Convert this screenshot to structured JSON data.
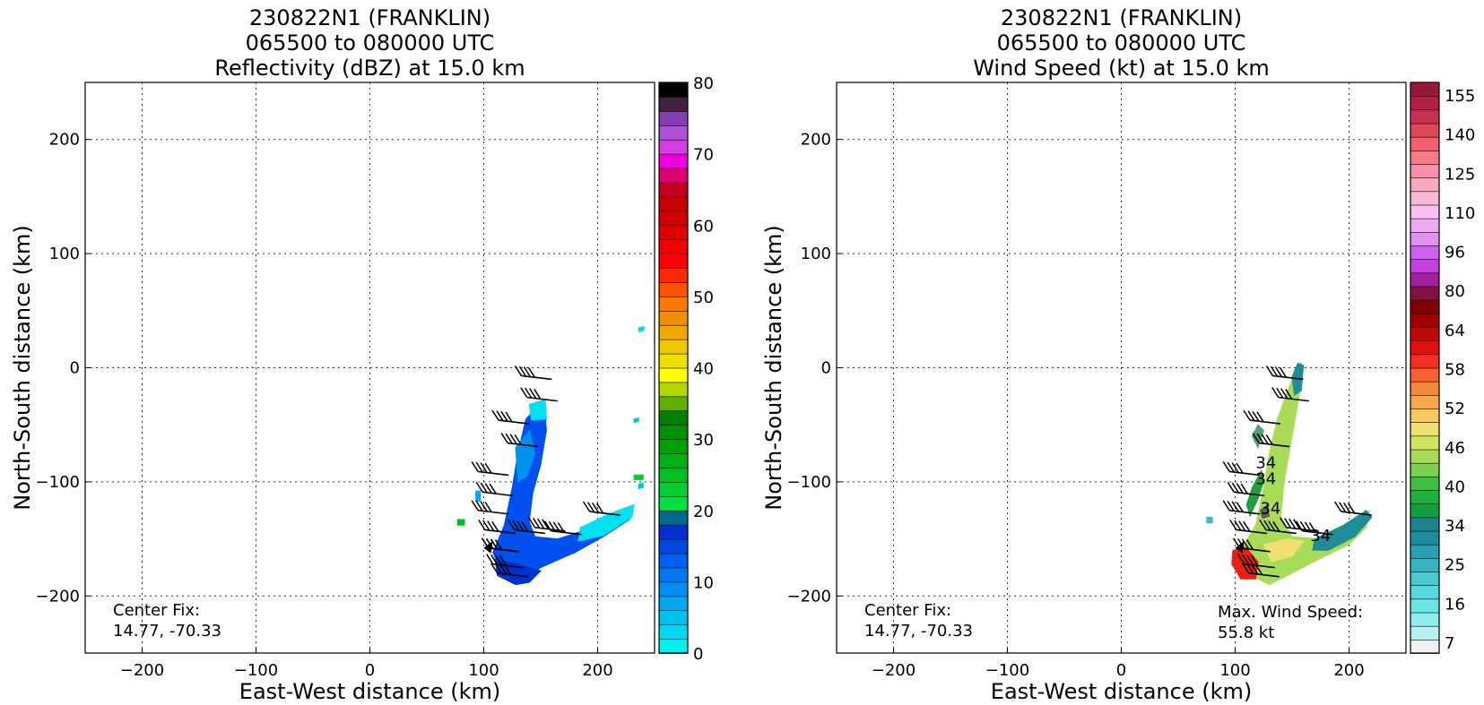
{
  "chart_data": [
    {
      "type": "heatmap",
      "title_lines": [
        "230822N1 (FRANKLIN)",
        "065500 to 080000 UTC",
        "Reflectivity (dBZ) at 15.0 km"
      ],
      "xlabel": "East-West distance (km)",
      "ylabel": "North-South distance (km)",
      "xlim": [
        -250,
        250
      ],
      "ylim": [
        -250,
        250
      ],
      "xticks": [
        -200,
        -100,
        0,
        100,
        200
      ],
      "yticks": [
        -200,
        -100,
        0,
        100,
        200
      ],
      "xtick_labels": [
        "−200",
        "−100",
        "0",
        "100",
        "200"
      ],
      "ytick_labels": [
        "−200",
        "−100",
        "0",
        "100",
        "200"
      ],
      "grid": true,
      "annotation_lines": [
        "Center Fix:",
        "14.77, -70.33"
      ],
      "colorbar": {
        "min": 0,
        "max": 80,
        "ticks": [
          0,
          10,
          20,
          30,
          40,
          50,
          60,
          70,
          80
        ],
        "colors": [
          "#00f0f0",
          "#00d8f0",
          "#00c0f0",
          "#00a8f0",
          "#0090f0",
          "#0078f0",
          "#0060f0",
          "#0048e0",
          "#0030d0",
          "#006a8a",
          "#00e040",
          "#00d030",
          "#00c020",
          "#00b010",
          "#00a000",
          "#009000",
          "#008000",
          "#60b000",
          "#b0d800",
          "#ffff00",
          "#f0e000",
          "#f0c800",
          "#f0a800",
          "#f09000",
          "#ff7800",
          "#ff5000",
          "#ff2800",
          "#ff0000",
          "#f00000",
          "#e00000",
          "#d00000",
          "#c80000",
          "#c80020",
          "#e00070",
          "#f000e0",
          "#d040e0",
          "#b050d8",
          "#8040b0",
          "#402040",
          "#000000"
        ]
      },
      "echo_regions": [
        {
          "fill": "#0050f0",
          "points": [
            [
              118,
              -138
            ],
            [
              125,
              -105
            ],
            [
              130,
              -75
            ],
            [
              137,
              -45
            ],
            [
              153,
              -28
            ],
            [
              155,
              -55
            ],
            [
              150,
              -85
            ],
            [
              143,
              -110
            ],
            [
              140,
              -135
            ],
            [
              145,
              -148
            ],
            [
              165,
              -150
            ],
            [
              190,
              -142
            ],
            [
              215,
              -128
            ],
            [
              232,
              -120
            ],
            [
              228,
              -133
            ],
            [
              205,
              -148
            ],
            [
              180,
              -162
            ],
            [
              150,
              -175
            ],
            [
              132,
              -188
            ],
            [
              115,
              -178
            ],
            [
              108,
              -162
            ]
          ]
        },
        {
          "fill": "#00e0f0",
          "points": [
            [
              140,
              -32
            ],
            [
              154,
              -28
            ],
            [
              155,
              -45
            ],
            [
              142,
              -46
            ]
          ]
        },
        {
          "fill": "#00e0f0",
          "points": [
            [
              185,
              -140
            ],
            [
              210,
              -128
            ],
            [
              232,
              -120
            ],
            [
              230,
              -131
            ],
            [
              205,
              -147
            ],
            [
              183,
              -152
            ]
          ]
        },
        {
          "fill": "#0090f0",
          "points": [
            [
              128,
              -70
            ],
            [
              140,
              -55
            ],
            [
              145,
              -75
            ],
            [
              138,
              -95
            ],
            [
              130,
              -100
            ]
          ]
        },
        {
          "fill": "#0030d0",
          "points": [
            [
              110,
              -168
            ],
            [
              130,
              -172
            ],
            [
              150,
              -178
            ],
            [
              140,
              -188
            ],
            [
              128,
              -190
            ],
            [
              112,
              -182
            ]
          ]
        },
        {
          "fill": "#00c0f0",
          "points": [
            [
              232,
              -45
            ],
            [
              236,
              -44
            ],
            [
              236,
              -47
            ],
            [
              232,
              -48
            ]
          ]
        },
        {
          "fill": "#00c0f0",
          "points": [
            [
              236,
              -102
            ],
            [
              240,
              -101
            ],
            [
              240,
              -105
            ],
            [
              236,
              -106
            ]
          ]
        },
        {
          "fill": "#00d8f0",
          "points": [
            [
              236,
              35
            ],
            [
              241,
              36
            ],
            [
              240,
              32
            ],
            [
              236,
              32
            ]
          ]
        },
        {
          "fill": "#00c020",
          "points": [
            [
              77,
              -133
            ],
            [
              83,
              -133
            ],
            [
              83,
              -138
            ],
            [
              77,
              -138
            ]
          ]
        },
        {
          "fill": "#00d030",
          "points": [
            [
              232,
              -94
            ],
            [
              240,
              -94
            ],
            [
              240,
              -98
            ],
            [
              232,
              -98
            ]
          ]
        },
        {
          "fill": "#00a8f0",
          "points": [
            [
              93,
              -108
            ],
            [
              97,
              -108
            ],
            [
              97,
              -117
            ],
            [
              93,
              -117
            ]
          ]
        }
      ],
      "barbs": [
        [
          133,
          -7
        ],
        [
          138,
          -26
        ],
        [
          113,
          -46
        ],
        [
          121,
          -66
        ],
        [
          95,
          -91
        ],
        [
          99,
          -109
        ],
        [
          95,
          -125
        ],
        [
          101,
          -142
        ],
        [
          104,
          -158
        ],
        [
          108,
          -172
        ],
        [
          112,
          -180
        ],
        [
          127,
          -142
        ],
        [
          145,
          -140
        ],
        [
          159,
          -143
        ],
        [
          193,
          -126
        ],
        [
          104,
          -158
        ]
      ]
    },
    {
      "type": "heatmap",
      "title_lines": [
        "230822N1 (FRANKLIN)",
        "065500 to 080000 UTC",
        "Wind Speed (kt) at 15.0 km"
      ],
      "xlabel": "East-West distance (km)",
      "ylabel": "North-South distance (km)",
      "xlim": [
        -250,
        250
      ],
      "ylim": [
        -250,
        250
      ],
      "xticks": [
        -200,
        -100,
        0,
        100,
        200
      ],
      "yticks": [
        -200,
        -100,
        0,
        100,
        200
      ],
      "xtick_labels": [
        "−200",
        "−100",
        "0",
        "100",
        "200"
      ],
      "ytick_labels": [
        "−200",
        "−100",
        "0",
        "100",
        "200"
      ],
      "grid": true,
      "annotation_lines": [
        "Center Fix:",
        "14.77, -70.33"
      ],
      "max_wind_lines": [
        "Max. Wind Speed:",
        "55.8 kt"
      ],
      "contour_labels": [
        "34",
        "34",
        "34",
        "34"
      ],
      "colorbar": {
        "tick_labels": [
          "7",
          "16",
          "25",
          "34",
          "40",
          "46",
          "52",
          "58",
          "64",
          "80",
          "96",
          "110",
          "125",
          "140",
          "155"
        ],
        "colors": [
          "#f0f0f0",
          "#b8f0f0",
          "#90ecec",
          "#70e4e4",
          "#58d8dc",
          "#48c8d0",
          "#38b4c0",
          "#28a0b0",
          "#208ca0",
          "#208090",
          "#10a040",
          "#20b040",
          "#40c040",
          "#80d050",
          "#a8dc58",
          "#d0e460",
          "#f0e070",
          "#f8c860",
          "#f8a848",
          "#f88838",
          "#f86030",
          "#f03020",
          "#e01010",
          "#c00808",
          "#a00000",
          "#800000",
          "#801040",
          "#a020a0",
          "#c040e0",
          "#d060f0",
          "#e090f0",
          "#f0a8f0",
          "#f8c0f0",
          "#f8b8d8",
          "#f8a8c0",
          "#f890a8",
          "#f87888",
          "#f06070",
          "#e04858",
          "#c83050",
          "#b02040",
          "#981838"
        ]
      },
      "wind_regions": [
        {
          "fill": "#a8dc58",
          "points": [
            [
              118,
              -138
            ],
            [
              125,
              -105
            ],
            [
              130,
              -75
            ],
            [
              137,
              -45
            ],
            [
              150,
              -10
            ],
            [
              158,
              5
            ],
            [
              157,
              -20
            ],
            [
              150,
              -60
            ],
            [
              143,
              -100
            ],
            [
              140,
              -130
            ],
            [
              150,
              -148
            ],
            [
              175,
              -150
            ],
            [
              200,
              -140
            ],
            [
              218,
              -125
            ],
            [
              215,
              -140
            ],
            [
              200,
              -155
            ],
            [
              175,
              -167
            ],
            [
              150,
              -180
            ],
            [
              130,
              -190
            ],
            [
              110,
              -180
            ],
            [
              105,
              -160
            ]
          ]
        },
        {
          "fill": "#208c98",
          "points": [
            [
              150,
              -8
            ],
            [
              155,
              4
            ],
            [
              160,
              2
            ],
            [
              158,
              -20
            ],
            [
              152,
              -24
            ]
          ]
        },
        {
          "fill": "#208c98",
          "points": [
            [
              170,
              -150
            ],
            [
              195,
              -138
            ],
            [
              215,
              -125
            ],
            [
              220,
              -131
            ],
            [
              205,
              -148
            ],
            [
              182,
              -160
            ],
            [
              168,
              -160
            ]
          ]
        },
        {
          "fill": "#20a040",
          "points": [
            [
              113,
              -130
            ],
            [
              120,
              -115
            ],
            [
              125,
              -100
            ],
            [
              123,
              -90
            ],
            [
              115,
              -105
            ],
            [
              110,
              -120
            ]
          ]
        },
        {
          "fill": "#f0e070",
          "points": [
            [
              125,
              -155
            ],
            [
              145,
              -150
            ],
            [
              160,
              -152
            ],
            [
              150,
              -165
            ],
            [
              132,
              -170
            ]
          ]
        },
        {
          "fill": "#e82010",
          "points": [
            [
              98,
              -160
            ],
            [
              110,
              -158
            ],
            [
              120,
              -170
            ],
            [
              118,
              -185
            ],
            [
              105,
              -185
            ],
            [
              97,
              -172
            ]
          ]
        },
        {
          "fill": "#606060",
          "points": [
            [
              122,
              -125
            ],
            [
              128,
              -120
            ],
            [
              130,
              -130
            ],
            [
              124,
              -132
            ]
          ]
        },
        {
          "fill": "#50a070",
          "points": [
            [
              115,
              -60
            ],
            [
              120,
              -50
            ],
            [
              125,
              -55
            ],
            [
              120,
              -70
            ]
          ]
        },
        {
          "fill": "#40b8c8",
          "points": [
            [
              75,
              -131
            ],
            [
              80,
              -131
            ],
            [
              80,
              -136
            ],
            [
              75,
              -136
            ]
          ]
        }
      ],
      "barbs": [
        [
          133,
          -7
        ],
        [
          138,
          -26
        ],
        [
          113,
          -46
        ],
        [
          121,
          -66
        ],
        [
          95,
          -91
        ],
        [
          99,
          -109
        ],
        [
          95,
          -125
        ],
        [
          101,
          -142
        ],
        [
          104,
          -158
        ],
        [
          108,
          -172
        ],
        [
          112,
          -180
        ],
        [
          127,
          -142
        ],
        [
          145,
          -140
        ],
        [
          159,
          -143
        ],
        [
          193,
          -126
        ]
      ]
    }
  ]
}
